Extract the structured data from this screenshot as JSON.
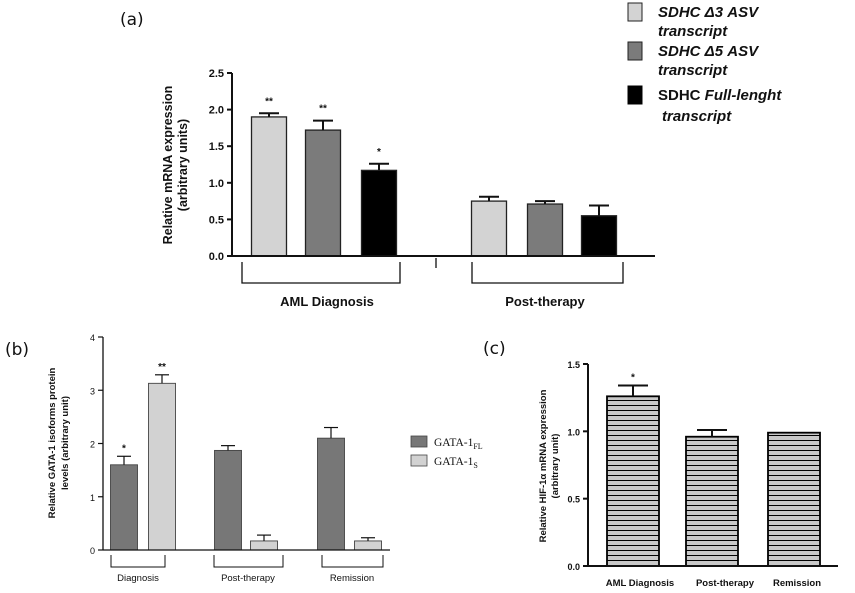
{
  "panels": {
    "a": "(a)",
    "b": "(b)",
    "c": "(c)"
  },
  "colors": {
    "light": "#d3d3d3",
    "mid": "#7b7b7b",
    "dark": "#000000",
    "gata_fl": "#777777",
    "gata_s": "#d2d2d2"
  },
  "legend_a": [
    {
      "line1": "SDHC  Δ3 ASV",
      "line2": "transcript"
    },
    {
      "line1": "SDHC  Δ5 ASV",
      "line2": "transcript"
    },
    {
      "line1": "SDHC Full-lenght",
      "line2": "transcript"
    }
  ],
  "legend_b": [
    {
      "base": "GATA-1",
      "sub": "FL"
    },
    {
      "base": "GATA-1",
      "sub": "S"
    }
  ],
  "chart_data": [
    {
      "id": "a",
      "type": "bar",
      "ylabel_line1": "Relative mRNA expression",
      "ylabel_line2": "(arbitrary units)",
      "ylim": [
        0,
        2.5
      ],
      "yticks": [
        "0.0",
        "0.5",
        "1.0",
        "1.5",
        "2.0",
        "2.5"
      ],
      "categories": [
        "AML Diagnosis",
        "Post-therapy"
      ],
      "series": [
        {
          "name": "SDHC Δ3 ASV transcript",
          "values": [
            1.9,
            0.75
          ],
          "errors": [
            0.05,
            0.06
          ],
          "sig": [
            "**",
            ""
          ]
        },
        {
          "name": "SDHC Δ5 ASV transcript",
          "values": [
            1.72,
            0.71
          ],
          "errors": [
            0.13,
            0.04
          ],
          "sig": [
            "**",
            ""
          ]
        },
        {
          "name": "SDHC Full-lenght transcript",
          "values": [
            1.17,
            0.55
          ],
          "errors": [
            0.09,
            0.14
          ],
          "sig": [
            "*",
            ""
          ]
        }
      ]
    },
    {
      "id": "b",
      "type": "bar",
      "ylabel_line1": "Relative GATA-1 isoforms protein",
      "ylabel_line2": "levels (arbitrary unit)",
      "ylim": [
        0,
        4
      ],
      "yticks": [
        "0",
        "1",
        "2",
        "3",
        "4"
      ],
      "categories": [
        "Diagnosis",
        "Post-therapy",
        "Remission"
      ],
      "series": [
        {
          "name": "GATA-1FL",
          "values": [
            1.6,
            1.87,
            2.1
          ],
          "errors": [
            0.16,
            0.09,
            0.2
          ],
          "sig": [
            "*",
            "",
            ""
          ]
        },
        {
          "name": "GATA-1S",
          "values": [
            3.13,
            0.17,
            0.17
          ],
          "errors": [
            0.16,
            0.11,
            0.06
          ],
          "sig": [
            "**",
            "",
            ""
          ]
        }
      ]
    },
    {
      "id": "c",
      "type": "bar",
      "ylabel_line1": "Relative HIF-1α mRNA expression",
      "ylabel_line2": "(arbitrary unit)",
      "ylim": [
        0,
        1.5
      ],
      "yticks": [
        "0.0",
        "0.5",
        "1.0",
        "1.5"
      ],
      "categories": [
        "AML Diagnosis",
        "Post-therapy",
        "Remission"
      ],
      "series": [
        {
          "name": "HIF-1α",
          "values": [
            1.26,
            0.96,
            0.99
          ],
          "errors": [
            0.08,
            0.05,
            0
          ],
          "sig": [
            "*",
            "",
            ""
          ]
        }
      ]
    }
  ]
}
